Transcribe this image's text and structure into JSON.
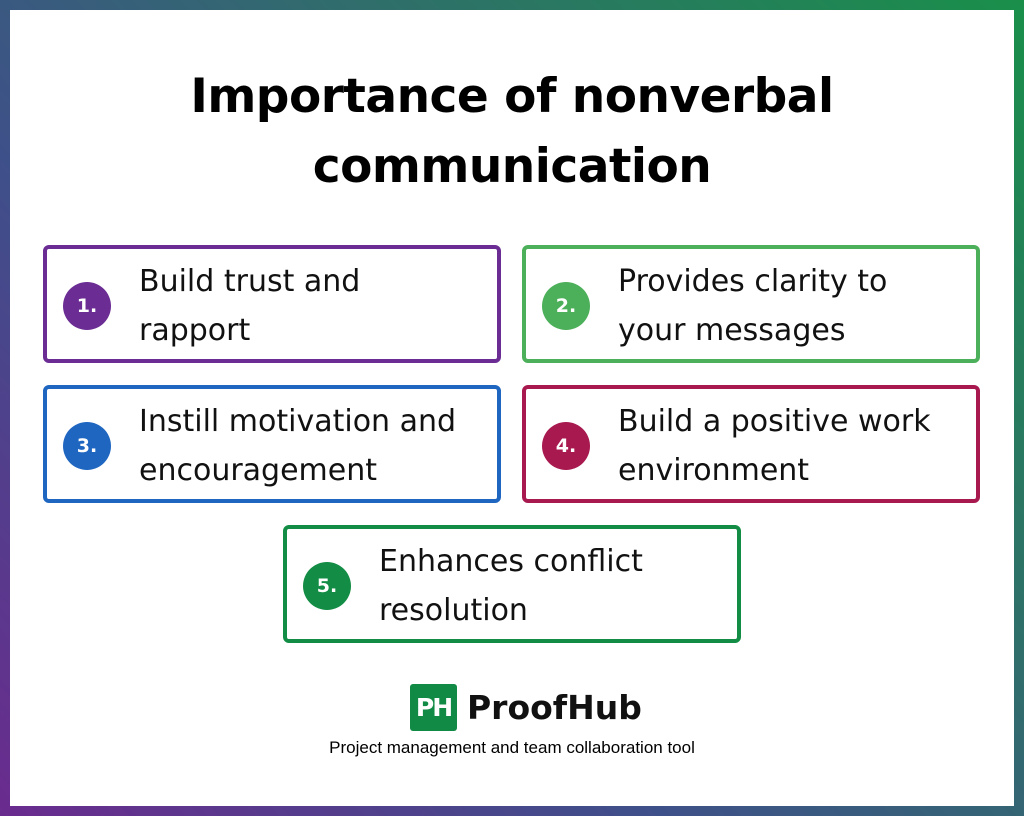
{
  "title": {
    "line1": "Importance of nonverbal",
    "line2": "communication"
  },
  "items": [
    {
      "number": "1.",
      "line1": "Build trust and",
      "line2": "rapport",
      "color": "#6b2d94"
    },
    {
      "number": "2.",
      "line1": "Provides clarity to",
      "line2": "your messages",
      "color": "#4caf59"
    },
    {
      "number": "3.",
      "line1": "Instill motivation and",
      "line2": "encouragement",
      "color": "#1f66c1"
    },
    {
      "number": "4.",
      "line1": "Build a positive work",
      "line2": "environment",
      "color": "#a8194f"
    },
    {
      "number": "5.",
      "line1": "Enhances conflict",
      "line2": "resolution",
      "color": "#138d45"
    }
  ],
  "brand": {
    "logo_mark": "PH",
    "name": "ProofHub",
    "tagline": "Project management and team collaboration tool",
    "color": "#108a44"
  }
}
